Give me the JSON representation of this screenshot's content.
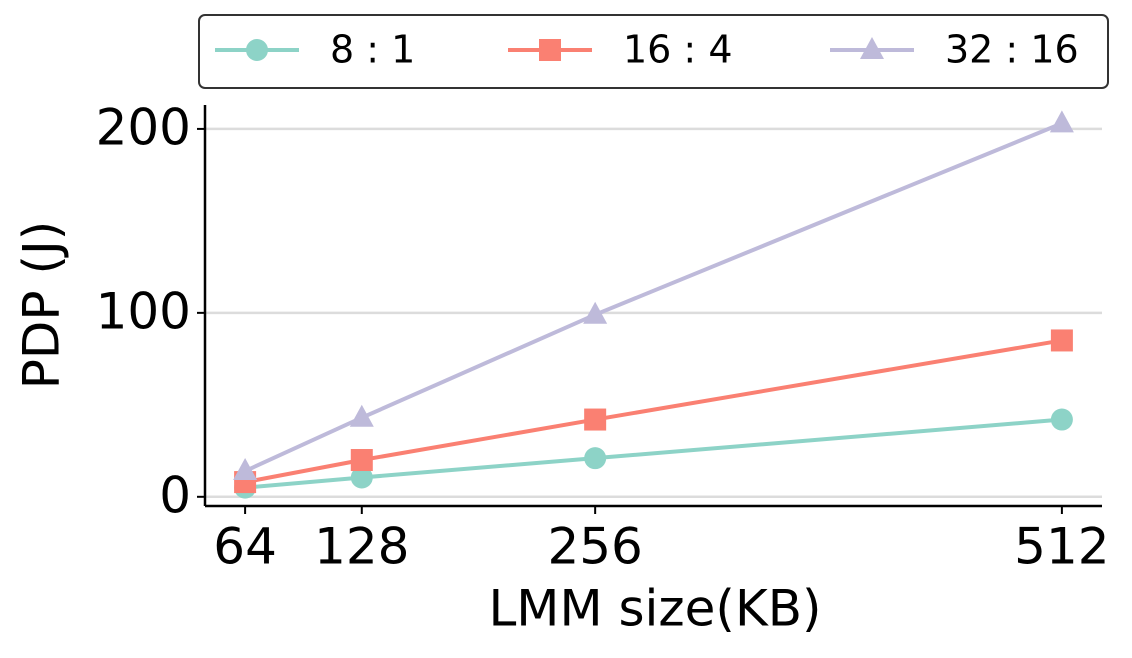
{
  "chart_data": {
    "type": "line",
    "x_label": "LMM size(KB)",
    "y_label": "PDP (J)",
    "x": [
      64,
      128,
      256,
      512
    ],
    "series": [
      {
        "name": "8 : 1",
        "color": "#8dd3c7",
        "marker": "circle",
        "values": [
          5,
          10.5,
          21,
          42
        ]
      },
      {
        "name": "16 : 4",
        "color": "#fa8072",
        "marker": "square",
        "values": [
          8,
          20,
          42,
          85
        ]
      },
      {
        "name": "32 : 16",
        "color": "#bebada",
        "marker": "triangle",
        "values": [
          14,
          43,
          99,
          203
        ]
      }
    ],
    "xlim": [
      42,
      534
    ],
    "xticks": [
      64,
      128,
      256,
      512
    ],
    "ylim": [
      -5,
      213
    ],
    "yticks": [
      0,
      100,
      200
    ],
    "grid": true,
    "legend": "top"
  }
}
